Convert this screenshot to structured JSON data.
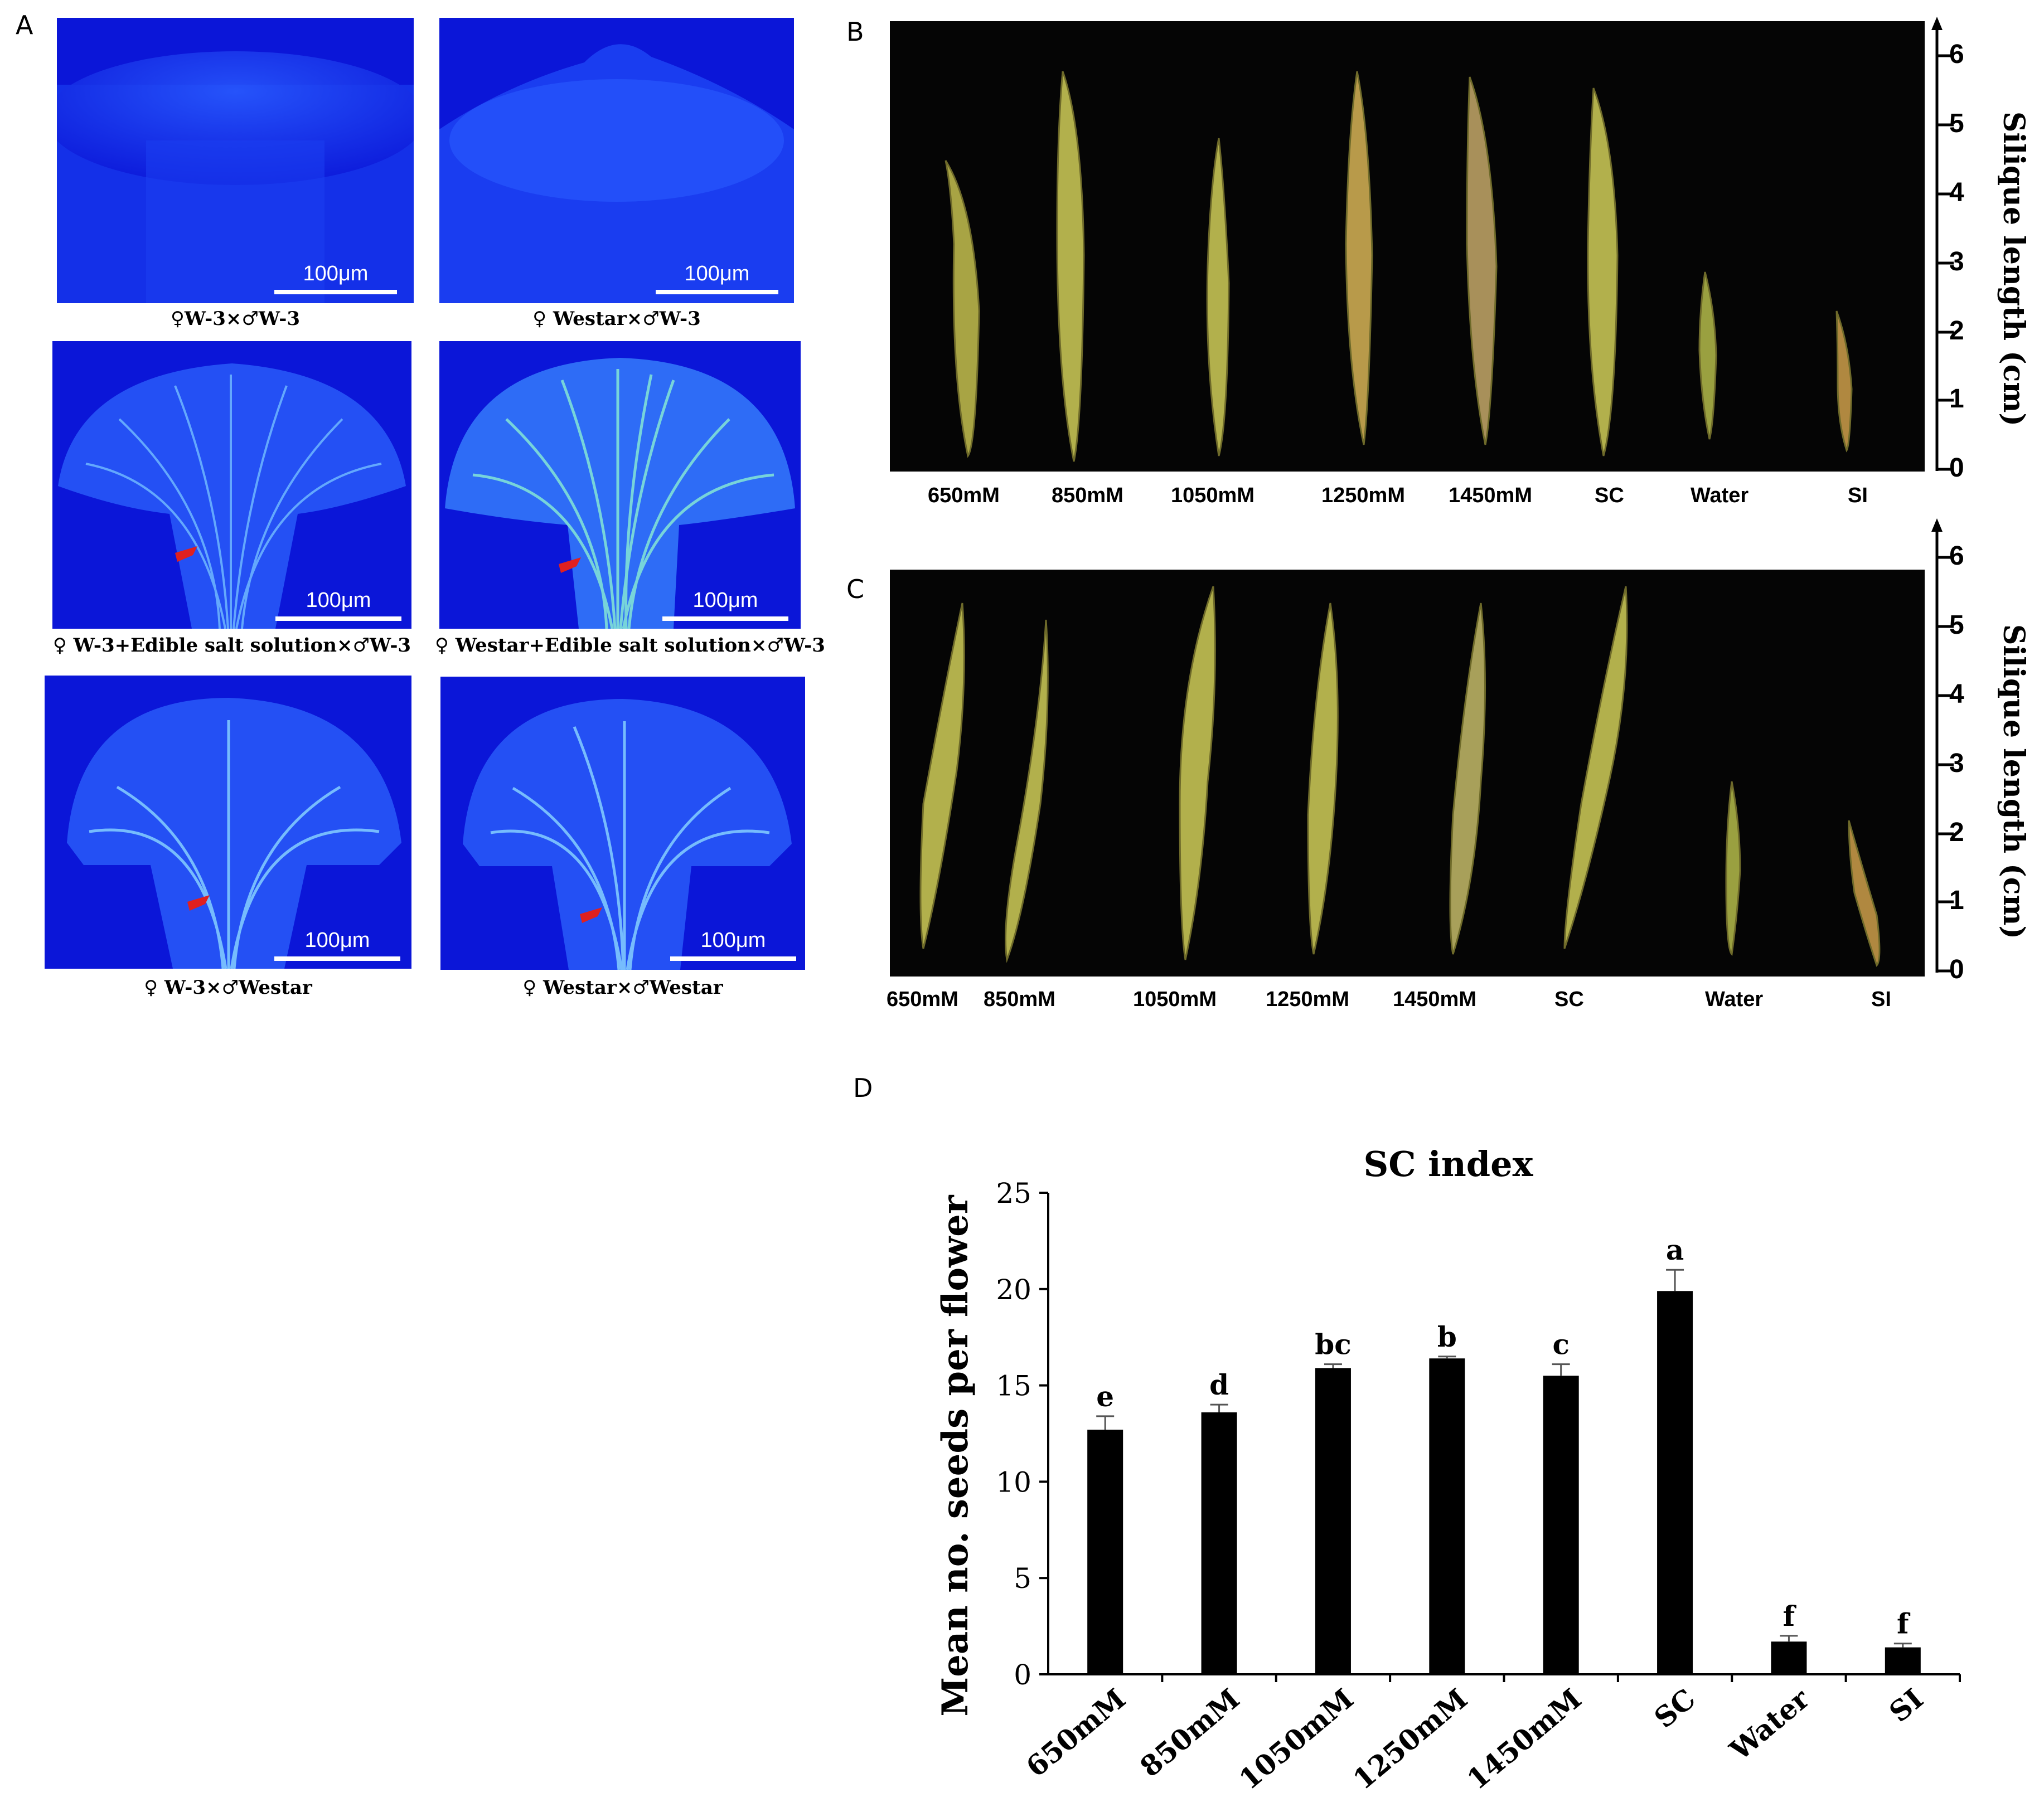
{
  "panels": {
    "a": "A",
    "b": "B",
    "c": "C",
    "d": "D"
  },
  "panel_a": {
    "scale_label": "100μm",
    "captions": [
      "♀W-3×♂W-3",
      "♀ Westar×♂W-3",
      "♀ W-3+Edible salt solution×♂W-3",
      "♀ Westar+Edible salt solution×♂W-3",
      "♀ W-3×♂Westar",
      "♀ Westar×♂Westar"
    ],
    "colors": {
      "background": "#1020e0",
      "hyphae": "#5fd0ff",
      "arrow": "#e02020"
    }
  },
  "panel_b": {
    "labels": [
      "650mM",
      "850mM",
      "1050mM",
      "1250mM",
      "1450mM",
      "SC",
      "Water",
      "SI"
    ],
    "ruler_ticks": [
      "0",
      "1",
      "2",
      "3",
      "4",
      "5",
      "6"
    ],
    "ruler_title": "Silique length (cm)"
  },
  "panel_c": {
    "labels": [
      "650mM",
      "850mM",
      "1050mM",
      "1250mM",
      "1450mM",
      "SC",
      "Water",
      "SI"
    ],
    "ruler_ticks": [
      "0",
      "1",
      "2",
      "3",
      "4",
      "5",
      "6"
    ],
    "ruler_title": "Silique length (cm)"
  },
  "chart_data": {
    "type": "bar",
    "title": "SC index",
    "xlabel": "",
    "ylabel": "Mean no. seeds per flower",
    "categories": [
      "650mM",
      "850mM",
      "1050mM",
      "1250mM",
      "1450mM",
      "SC",
      "Water",
      "SI"
    ],
    "values": [
      12.7,
      13.6,
      15.9,
      16.4,
      15.5,
      19.9,
      1.7,
      1.4
    ],
    "errors": [
      0.7,
      0.4,
      0.2,
      0.1,
      0.6,
      1.1,
      0.3,
      0.2
    ],
    "letters": [
      "e",
      "d",
      "bc",
      "b",
      "c",
      "a",
      "f",
      "f"
    ],
    "ylim": [
      0,
      25
    ],
    "yticks": [
      "0",
      "5",
      "10",
      "15",
      "20",
      "25"
    ],
    "grid": false,
    "bar_color": "#000000"
  }
}
